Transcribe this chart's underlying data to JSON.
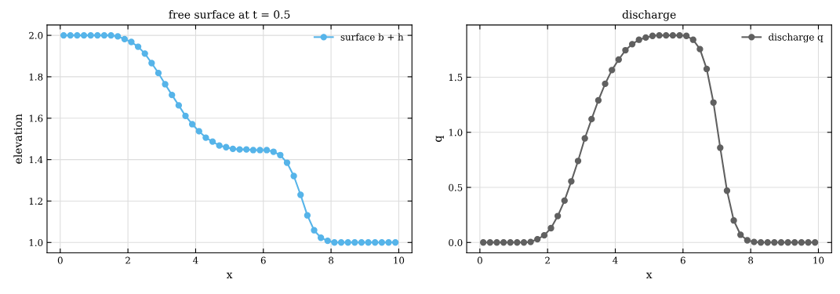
{
  "chart_data": [
    {
      "type": "line",
      "title": "free surface at t = 0.5",
      "xlabel": "x",
      "ylabel": "elevation",
      "x": [
        0.1,
        0.3,
        0.5,
        0.7,
        0.9,
        1.1,
        1.3,
        1.5,
        1.7,
        1.9,
        2.1,
        2.3,
        2.5,
        2.7,
        2.9,
        3.1,
        3.3,
        3.5,
        3.7,
        3.9,
        4.1,
        4.3,
        4.5,
        4.7,
        4.9,
        5.1,
        5.3,
        5.5,
        5.7,
        5.9,
        6.1,
        6.3,
        6.5,
        6.7,
        6.9,
        7.1,
        7.3,
        7.5,
        7.7,
        7.9,
        8.1,
        8.3,
        8.5,
        8.7,
        8.9,
        9.1,
        9.3,
        9.5,
        9.7,
        9.9
      ],
      "series": [
        {
          "name": "surface b + h",
          "color": "#56b4e9",
          "values": [
            2.0,
            2.0,
            2.0,
            2.0,
            2.0,
            2.0,
            2.0,
            2.0,
            1.995,
            1.982,
            1.968,
            1.945,
            1.912,
            1.866,
            1.818,
            1.764,
            1.712,
            1.662,
            1.611,
            1.571,
            1.537,
            1.506,
            1.487,
            1.468,
            1.46,
            1.452,
            1.449,
            1.449,
            1.446,
            1.446,
            1.446,
            1.438,
            1.422,
            1.385,
            1.321,
            1.23,
            1.131,
            1.059,
            1.023,
            1.008,
            1.0,
            1.0,
            1.0,
            1.0,
            1.0,
            1.0,
            1.0,
            1.0,
            1.0,
            1.0
          ]
        }
      ],
      "xlim": [
        -0.39,
        10.39
      ],
      "xticks": [
        0,
        2,
        4,
        6,
        8,
        10
      ],
      "ylim": [
        0.95,
        2.05
      ],
      "yticks": [
        {
          "value": 1.0,
          "label": "1.0"
        },
        {
          "value": 1.2,
          "label": "1.2"
        },
        {
          "value": 1.4,
          "label": "1.4"
        },
        {
          "value": 1.6,
          "label": "1.6"
        },
        {
          "value": 1.8,
          "label": "1.8"
        },
        {
          "value": 2.0,
          "label": "2.0"
        }
      ],
      "grid": true,
      "legend": "top right",
      "marker": "circle",
      "line_style": "solid"
    },
    {
      "type": "line",
      "title": "discharge",
      "xlabel": "x",
      "ylabel": "q",
      "x": [
        0.1,
        0.3,
        0.5,
        0.7,
        0.9,
        1.1,
        1.3,
        1.5,
        1.7,
        1.9,
        2.1,
        2.3,
        2.5,
        2.7,
        2.9,
        3.1,
        3.3,
        3.5,
        3.7,
        3.9,
        4.1,
        4.3,
        4.5,
        4.7,
        4.9,
        5.1,
        5.3,
        5.5,
        5.7,
        5.9,
        6.1,
        6.3,
        6.5,
        6.7,
        6.9,
        7.1,
        7.3,
        7.5,
        7.7,
        7.9,
        8.1,
        8.3,
        8.5,
        8.7,
        8.9,
        9.1,
        9.3,
        9.5,
        9.7,
        9.9
      ],
      "series": [
        {
          "name": "discharge q",
          "color": "#606060",
          "values": [
            0,
            0,
            0,
            0,
            0,
            0,
            0,
            0.005,
            0.03,
            0.065,
            0.13,
            0.24,
            0.38,
            0.555,
            0.74,
            0.945,
            1.12,
            1.29,
            1.44,
            1.565,
            1.66,
            1.745,
            1.8,
            1.84,
            1.86,
            1.875,
            1.88,
            1.88,
            1.88,
            1.88,
            1.875,
            1.84,
            1.755,
            1.575,
            1.27,
            0.86,
            0.47,
            0.2,
            0.07,
            0.02,
            0.005,
            0,
            0,
            0,
            0,
            0,
            0,
            0,
            0,
            0
          ]
        }
      ],
      "xlim": [
        -0.39,
        10.39
      ],
      "xticks": [
        0,
        2,
        4,
        6,
        8,
        10
      ],
      "ylim": [
        -0.094,
        1.974
      ],
      "yticks": [
        {
          "value": 0,
          "label": "0.0"
        },
        {
          "value": 0.5,
          "label": "0.5"
        },
        {
          "value": 1.0,
          "label": "1.0"
        },
        {
          "value": 1.5,
          "label": "1.5"
        }
      ],
      "grid": true,
      "legend": "top right",
      "marker": "circle",
      "line_style": "solid"
    }
  ]
}
